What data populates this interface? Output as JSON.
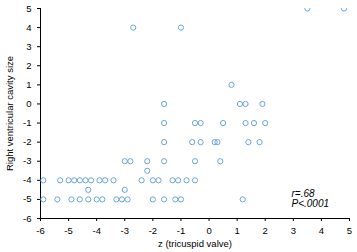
{
  "chart_data": {
    "type": "scatter",
    "x_label": "z (tricuspid valve)",
    "y_label": "Right ventricular cavity size",
    "annotations": [
      "r=.68",
      "P<.0001"
    ],
    "color": "#5b9bd5",
    "marker": "open circle",
    "x": [
      3.5,
      4.8,
      -2.7,
      -1.0,
      0.8,
      -1.6,
      1.1,
      1.3,
      1.9,
      -1.6,
      -0.5,
      -0.3,
      0.5,
      1.3,
      1.6,
      2.0,
      -1.6,
      -0.6,
      -0.3,
      0.2,
      0.3,
      1.4,
      1.8,
      -3.0,
      -2.8,
      -2.2,
      -1.6,
      -0.5,
      0.4,
      -5.9,
      -5.3,
      -5.0,
      -4.8,
      -4.6,
      -4.4,
      -4.2,
      -3.9,
      -3.7,
      -3.4,
      -2.4,
      -2.0,
      -1.8,
      -1.3,
      -1.1,
      -0.8,
      -0.5,
      -4.3,
      -3.0,
      -2.2,
      -5.9,
      -5.4,
      -4.9,
      -4.6,
      -4.3,
      -4.0,
      -3.8,
      -3.3,
      -3.1,
      -2.9,
      -2.0,
      -1.6,
      -1.2,
      -1.0,
      1.2
    ],
    "values": [
      5,
      5,
      4,
      4,
      1,
      0,
      0,
      0,
      0,
      -1,
      -1,
      -1,
      -1,
      -1,
      -1,
      -1,
      -2,
      -2,
      -2,
      -2,
      -2,
      -2,
      -2,
      -3,
      -3,
      -3,
      -3,
      -3,
      -3,
      -4,
      -4,
      -4,
      -4,
      -4,
      -4,
      -4,
      -4,
      -4,
      -4,
      -4,
      -4,
      -4,
      -4,
      -4,
      -4,
      -4,
      -4.5,
      -4.5,
      -3.5,
      -5,
      -5,
      -5,
      -5,
      -5,
      -5,
      -5,
      -5,
      -5,
      -5,
      -5,
      -5,
      -5,
      -5,
      -5
    ],
    "xlim": [
      -6,
      5
    ],
    "xticks": [
      -6,
      -5,
      -4,
      -3,
      -2,
      -1,
      0,
      1,
      2,
      3,
      4,
      5
    ],
    "ylim": [
      -6,
      5
    ],
    "yticks": [
      -6,
      -5,
      -4,
      -3,
      -2,
      -1,
      0,
      1,
      2,
      3,
      4,
      5
    ],
    "grid": false
  }
}
